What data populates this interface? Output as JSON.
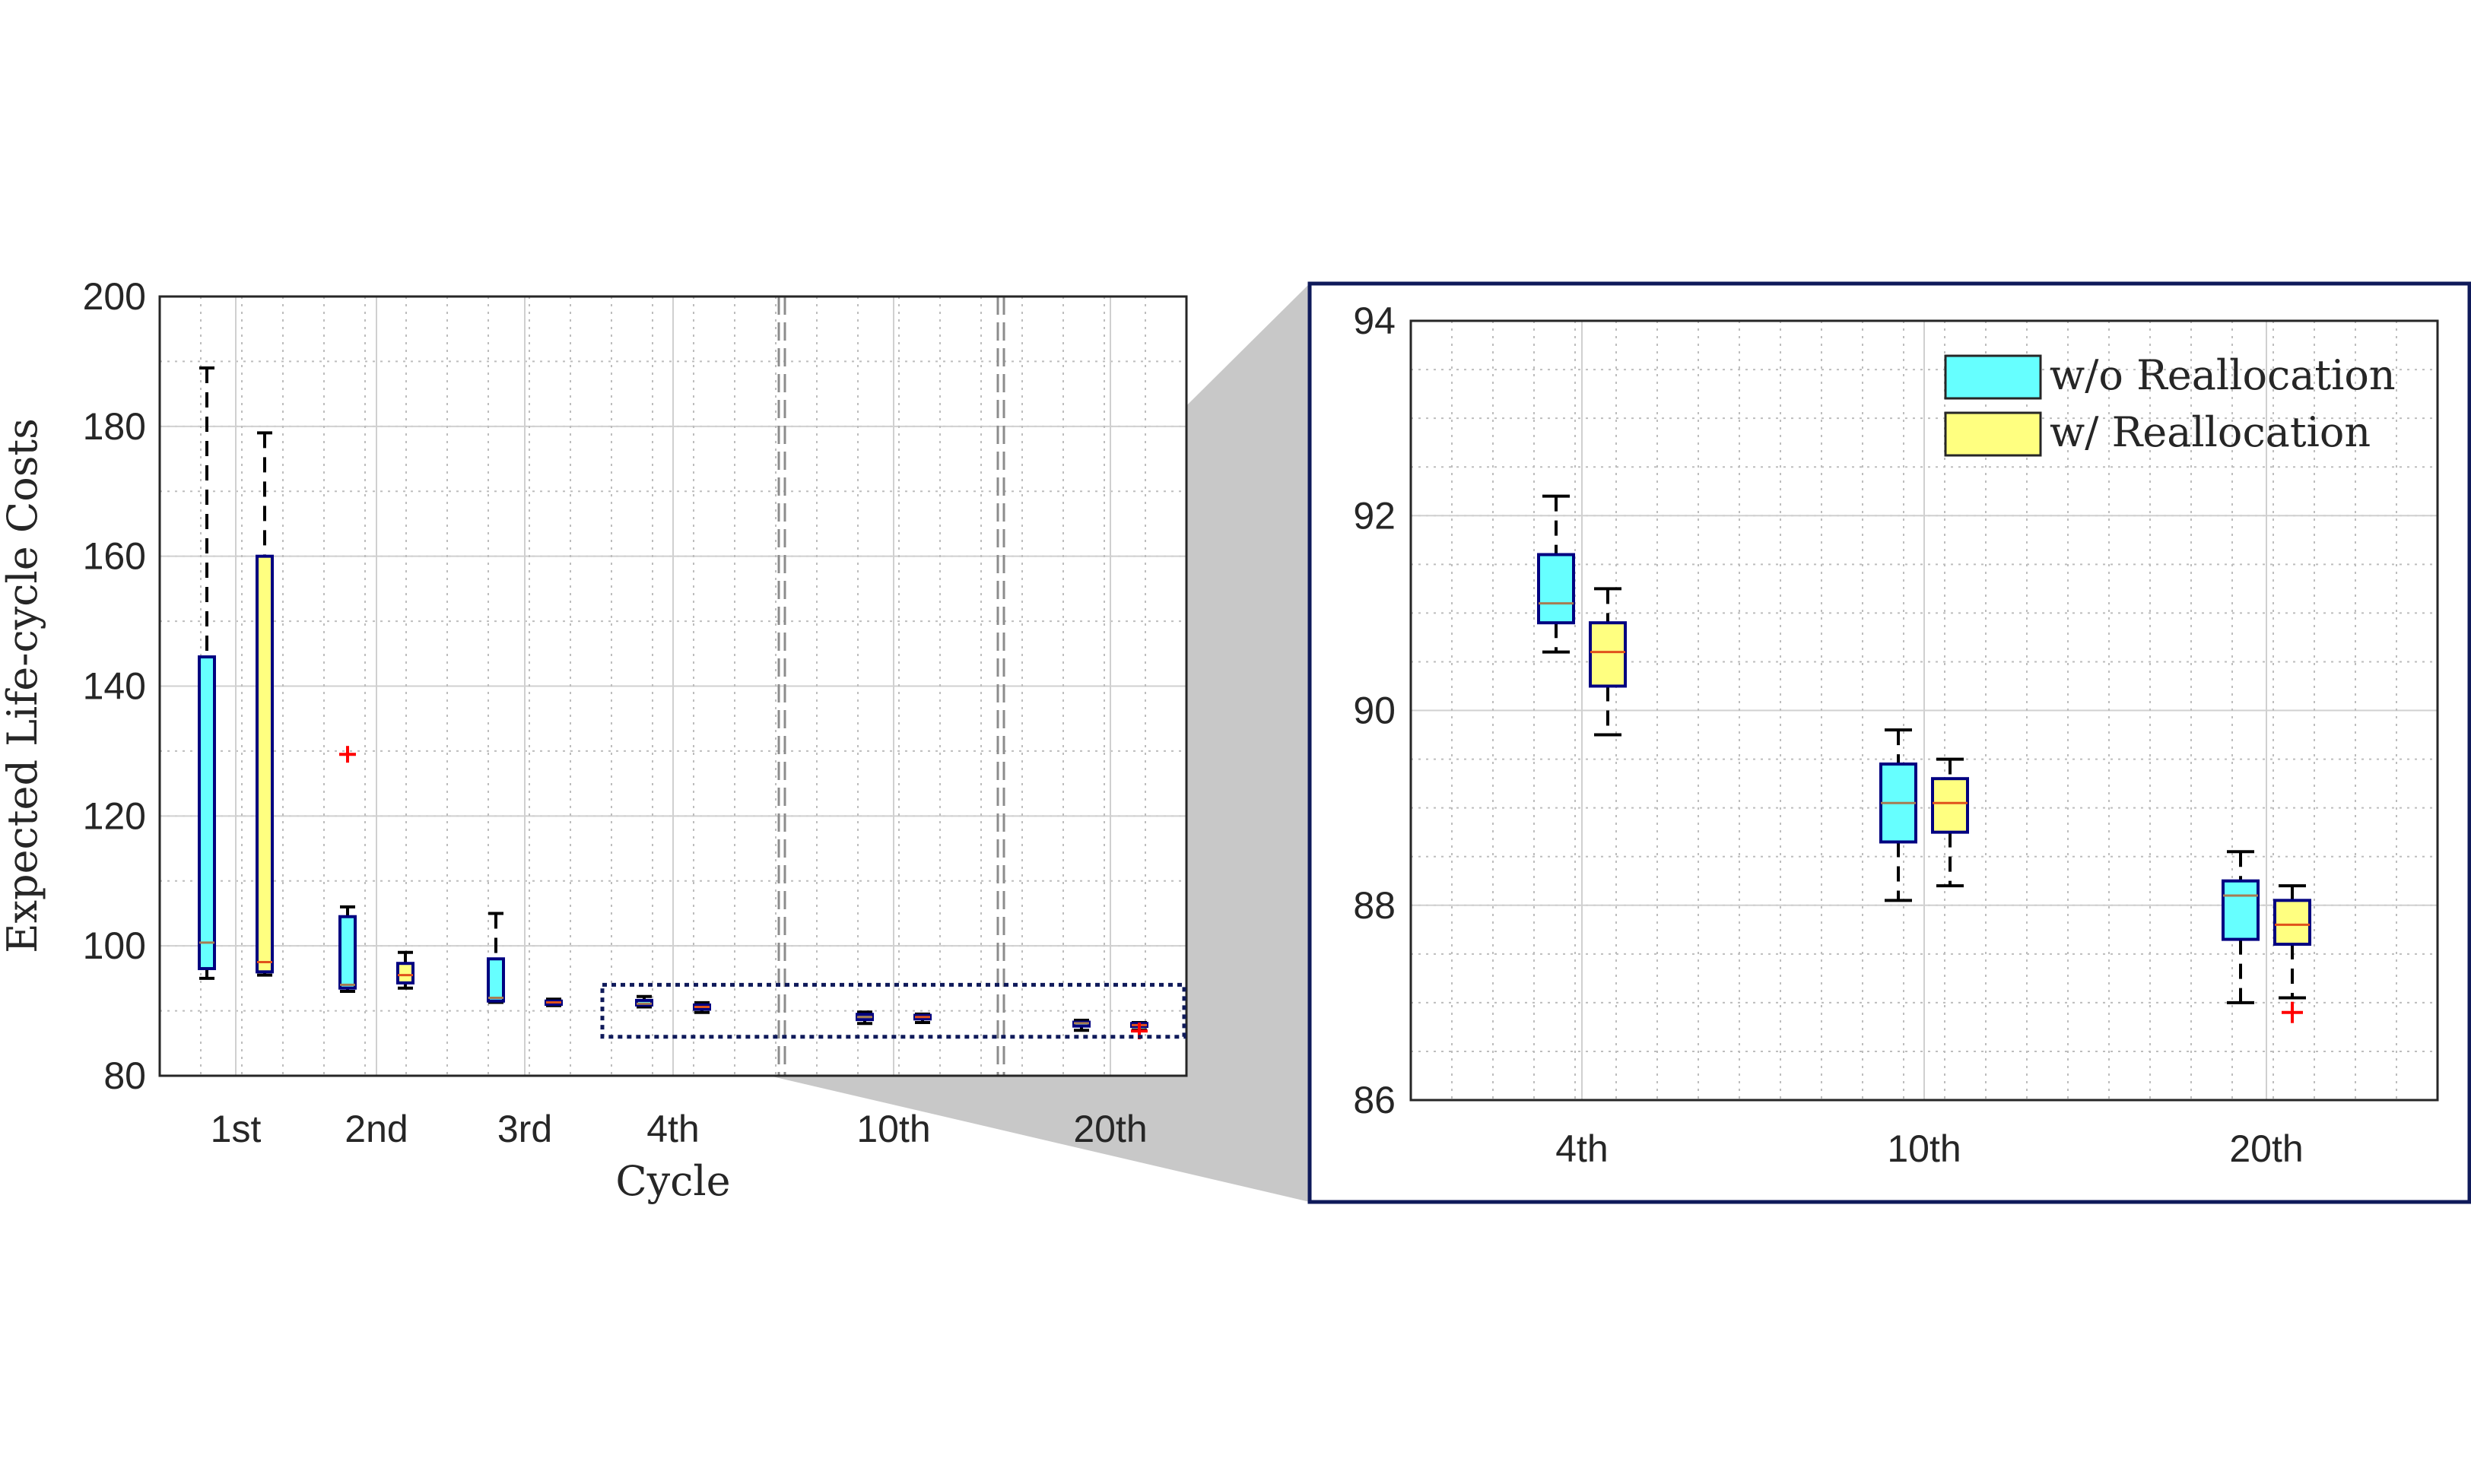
{
  "colors": {
    "without": "#66ffff",
    "with": "#ffff80",
    "box_edge": "#000080",
    "outlier": "#ff0000",
    "zoom_shade": "#c8c8c8",
    "inset_frame": "#0f1a5a"
  },
  "chart_data": [
    {
      "type": "boxplot",
      "title": "",
      "xlabel": "Cycle",
      "ylabel": "Expected Life-cycle Costs",
      "categories": [
        "1st",
        "2nd",
        "3rd",
        "4th",
        "10th",
        "20th"
      ],
      "ylim": [
        80,
        200
      ],
      "yticks": [
        80,
        100,
        120,
        140,
        160,
        180,
        200
      ],
      "grid": true,
      "series": [
        {
          "name": "w/o Reallocation",
          "boxes": [
            {
              "min": 95,
              "q1": 96.5,
              "median": 100.5,
              "q3": 144.5,
              "max": 189,
              "outliers": []
            },
            {
              "min": 93,
              "q1": 93.5,
              "median": 94,
              "q3": 104.5,
              "max": 106,
              "outliers": [
                129.5
              ]
            },
            {
              "min": 91.3,
              "q1": 91.5,
              "median": 92,
              "q3": 98,
              "max": 105,
              "outliers": []
            },
            {
              "min": 90.6,
              "q1": 90.9,
              "median": 91.1,
              "q3": 91.6,
              "max": 92.2,
              "outliers": []
            },
            {
              "min": 88.05,
              "q1": 88.65,
              "median": 89.05,
              "q3": 89.45,
              "max": 89.8,
              "outliers": []
            },
            {
              "min": 87.0,
              "q1": 87.65,
              "median": 88.1,
              "q3": 88.25,
              "max": 88.55,
              "outliers": []
            }
          ]
        },
        {
          "name": "w/ Reallocation",
          "boxes": [
            {
              "min": 95.5,
              "q1": 96,
              "median": 97.5,
              "q3": 160,
              "max": 179,
              "outliers": []
            },
            {
              "min": 93.5,
              "q1": 94.3,
              "median": 95.5,
              "q3": 97.3,
              "max": 99,
              "outliers": []
            },
            {
              "min": 90.8,
              "q1": 91,
              "median": 91.3,
              "q3": 91.5,
              "max": 91.8,
              "outliers": []
            },
            {
              "min": 89.75,
              "q1": 90.25,
              "median": 90.6,
              "q3": 90.9,
              "max": 91.25,
              "outliers": []
            },
            {
              "min": 88.2,
              "q1": 88.75,
              "median": 89.05,
              "q3": 89.3,
              "max": 89.5,
              "outliers": []
            },
            {
              "min": 87.05,
              "q1": 87.6,
              "median": 87.8,
              "q3": 88.05,
              "max": 88.2,
              "outliers": [
                86.9
              ]
            }
          ]
        }
      ]
    },
    {
      "type": "boxplot",
      "title": "",
      "xlabel": "",
      "ylabel": "",
      "categories": [
        "4th",
        "10th",
        "20th"
      ],
      "ylim": [
        86,
        94
      ],
      "yticks": [
        86,
        88,
        90,
        92,
        94
      ],
      "grid": true,
      "legend": {
        "position": "top-right",
        "entries": [
          "w/o Reallocation",
          "w/ Reallocation"
        ]
      },
      "series": [
        {
          "name": "w/o Reallocation",
          "boxes": [
            {
              "min": 90.6,
              "q1": 90.9,
              "median": 91.1,
              "q3": 91.6,
              "max": 92.2,
              "outliers": []
            },
            {
              "min": 88.05,
              "q1": 88.65,
              "median": 89.05,
              "q3": 89.45,
              "max": 89.8,
              "outliers": []
            },
            {
              "min": 87.0,
              "q1": 87.65,
              "median": 88.1,
              "q3": 88.25,
              "max": 88.55,
              "outliers": []
            }
          ]
        },
        {
          "name": "w/ Reallocation",
          "boxes": [
            {
              "min": 89.75,
              "q1": 90.25,
              "median": 90.6,
              "q3": 90.9,
              "max": 91.25,
              "outliers": []
            },
            {
              "min": 88.2,
              "q1": 88.75,
              "median": 89.05,
              "q3": 89.3,
              "max": 89.5,
              "outliers": []
            },
            {
              "min": 87.05,
              "q1": 87.6,
              "median": 87.8,
              "q3": 88.05,
              "max": 88.2,
              "outliers": [
                86.9
              ]
            }
          ]
        }
      ]
    }
  ]
}
